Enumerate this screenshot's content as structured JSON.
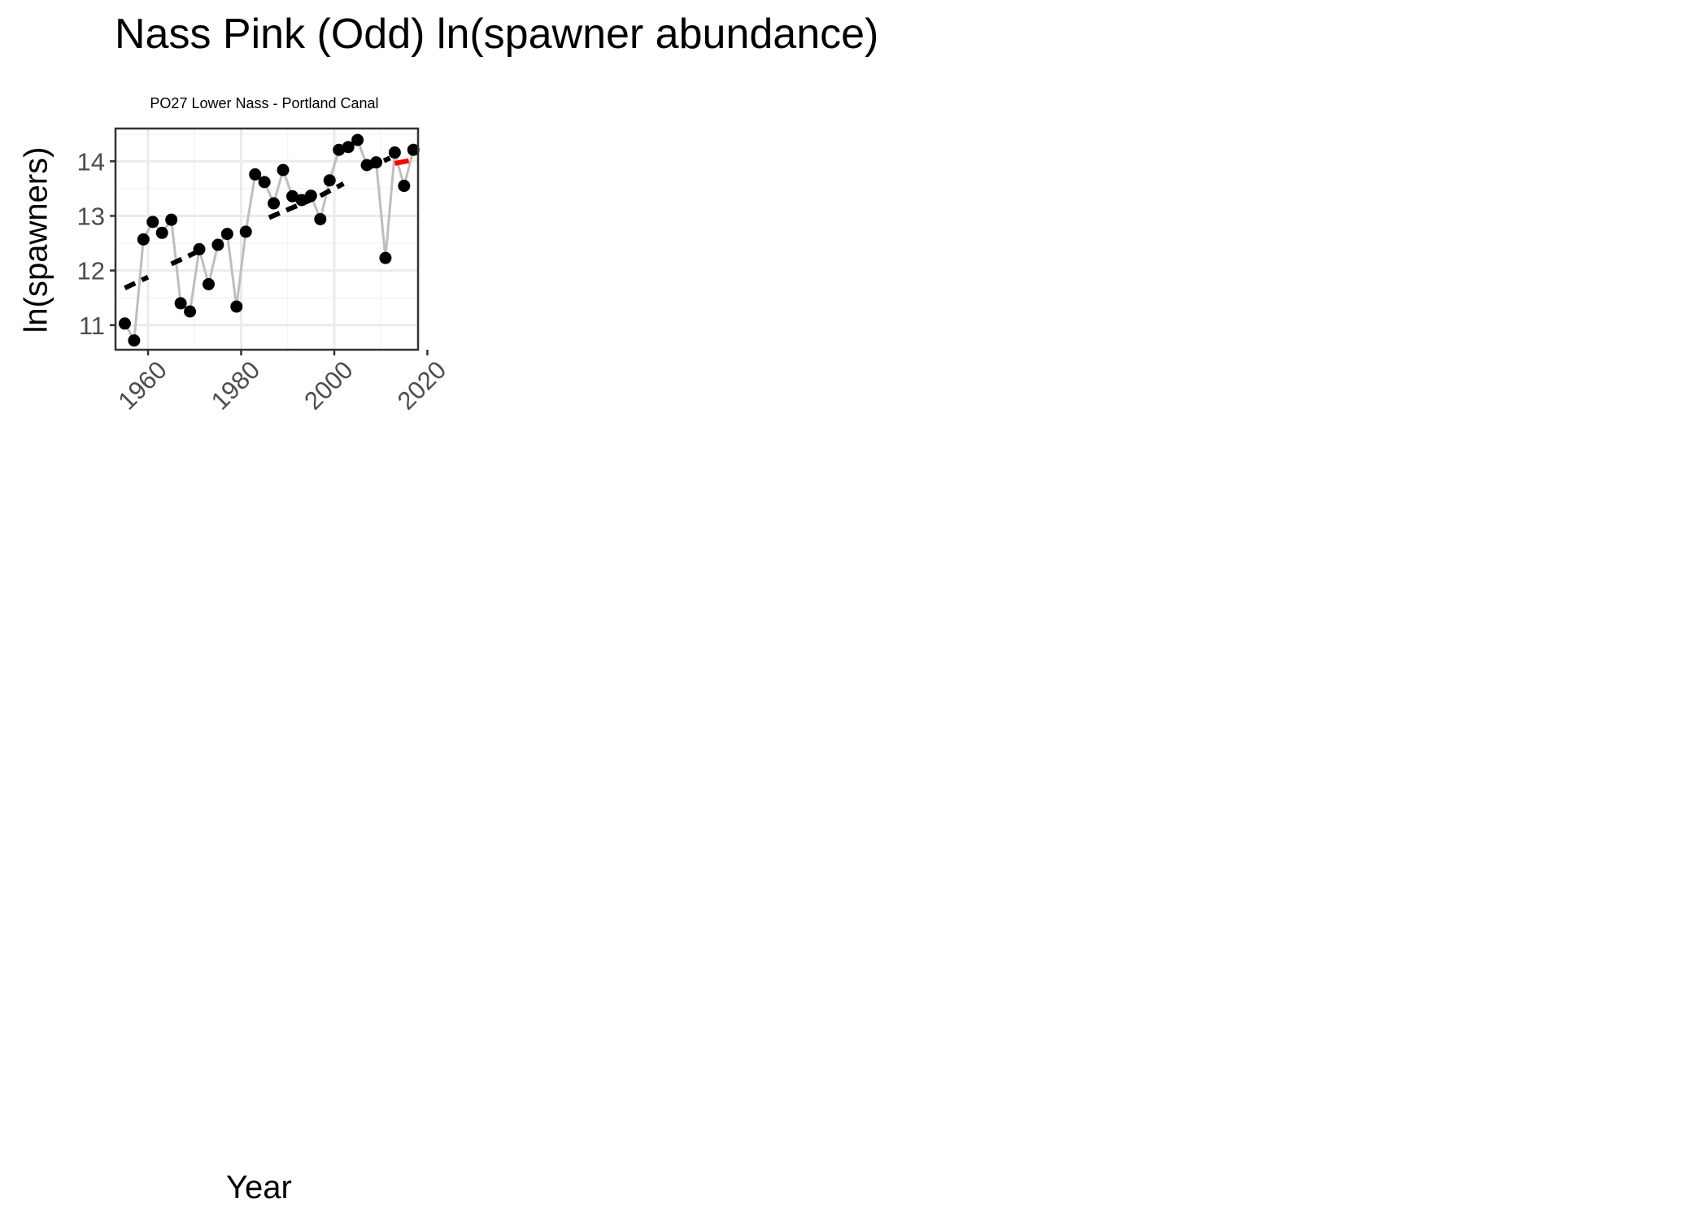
{
  "chart_data": {
    "type": "line",
    "title": "Nass Pink (Odd) ln(spawner abundance)",
    "subtitle": "PO27 Lower Nass - Portland Canal",
    "xlabel": "Year",
    "ylabel": "ln(spawners)",
    "xlim": [
      1953,
      2018
    ],
    "ylim": [
      10.55,
      14.6
    ],
    "x_ticks": [
      1960,
      1980,
      2000,
      2020
    ],
    "y_ticks": [
      11,
      12,
      13,
      14
    ],
    "grid": true,
    "series": [
      {
        "x": [
          1955,
          1957,
          1959,
          1961,
          1963,
          1965,
          1967,
          1969,
          1971,
          1973,
          1975,
          1977,
          1979,
          1981,
          1983,
          1985,
          1987,
          1989,
          1991,
          1993,
          1995,
          1997,
          1999,
          2001,
          2003,
          2005,
          2007,
          2009,
          2011,
          2013,
          2015,
          2017
        ],
        "values": [
          11.03,
          10.72,
          12.57,
          12.89,
          12.69,
          12.93,
          11.4,
          11.25,
          12.39,
          11.75,
          12.47,
          12.67,
          11.34,
          12.71,
          13.76,
          13.62,
          13.23,
          13.84,
          13.36,
          13.29,
          13.37,
          12.94,
          13.65,
          14.21,
          14.26,
          14.39,
          13.93,
          13.98,
          12.23,
          14.16,
          13.55,
          14.21
        ]
      }
    ],
    "trend_segments": [
      {
        "x": [
          1955,
          1960
        ],
        "values": [
          11.68,
          11.88
        ],
        "color": "#000000"
      },
      {
        "x": [
          1965,
          1971
        ],
        "values": [
          12.12,
          12.36
        ],
        "color": "#000000"
      },
      {
        "x": [
          1986,
          1996
        ],
        "values": [
          12.97,
          13.33
        ],
        "color": "#000000"
      },
      {
        "x": [
          1997,
          2002
        ],
        "values": [
          13.37,
          13.59
        ],
        "color": "#000000"
      },
      {
        "x": [
          2007,
          2012
        ],
        "values": [
          13.87,
          14.06
        ],
        "color": "#000000"
      },
      {
        "x": [
          2013,
          2016
        ],
        "values": [
          13.96,
          14.01
        ],
        "color": "#ff0000"
      }
    ],
    "colors": {
      "points": "#000000",
      "connecting_line": "#bebebe",
      "trend_recent": "#ff0000",
      "grid_major": "#ebebeb",
      "grid_minor": "#f5f5f5",
      "axis_text": "#4d4d4d"
    }
  }
}
